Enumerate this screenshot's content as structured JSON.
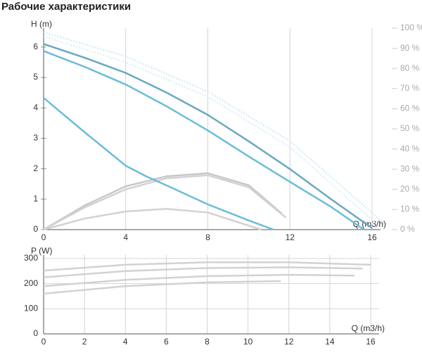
{
  "title": "Рабочие характеристики",
  "chart_data": [
    {
      "type": "line",
      "ylabel": "H (m)",
      "xlabel": "Q (m3/h)",
      "grid": "x",
      "xlim": [
        0,
        16
      ],
      "xticks": [
        0,
        4,
        8,
        12,
        16
      ],
      "ylim": [
        0,
        6.62
      ],
      "yticks": [
        0,
        1,
        2,
        3,
        4,
        5,
        6
      ],
      "y2lim": [
        0,
        100
      ],
      "y2ticks": [
        {
          "value": 0,
          "label": "0 %"
        },
        {
          "value": 10,
          "label": "10 %"
        },
        {
          "value": 20,
          "label": "20 %"
        },
        {
          "value": 30,
          "label": "30 %"
        },
        {
          "value": 40,
          "label": "40 %"
        },
        {
          "value": 50,
          "label": "50 %"
        },
        {
          "value": 60,
          "label": "60 %"
        },
        {
          "value": 70,
          "label": "70 %"
        },
        {
          "value": 80,
          "label": "80 %"
        },
        {
          "value": 90,
          "label": "90 %"
        },
        {
          "value": 100,
          "label": "100 %"
        }
      ],
      "series": [
        {
          "color": "#cfe9f3",
          "dash": "dotted",
          "axis": "y2",
          "x": [
            0,
            4,
            8,
            12,
            16.6
          ],
          "values": [
            98,
            86,
            68.5,
            44,
            3
          ]
        },
        {
          "color": "#d9eef6",
          "dash": "dotted",
          "axis": "y2",
          "x": [
            0,
            4,
            8,
            12,
            16.2
          ],
          "values": [
            96,
            83,
            66,
            41,
            3
          ]
        },
        {
          "color": "#c8c8c8",
          "axis": "y2",
          "x": [
            0,
            2,
            4,
            6,
            8,
            10,
            11.6
          ],
          "values": [
            0,
            12,
            21.5,
            26.5,
            28,
            22,
            8
          ]
        },
        {
          "color": "#d2d2d2",
          "axis": "y2",
          "x": [
            0,
            2,
            4,
            6,
            8,
            10,
            11.8
          ],
          "values": [
            0,
            11,
            20,
            25.5,
            27,
            21,
            6
          ]
        },
        {
          "color": "#d2d2d2",
          "axis": "y2",
          "x": [
            0,
            2,
            4,
            6,
            8,
            10.6
          ],
          "values": [
            0,
            5.5,
            9,
            10.3,
            8.5,
            0
          ]
        },
        {
          "color": "#6aa8bf",
          "x": [
            0,
            2,
            4,
            6,
            8,
            10,
            12,
            14,
            16
          ],
          "values": [
            6.1,
            5.65,
            5.15,
            4.5,
            3.77,
            2.9,
            1.99,
            1.0,
            0.05
          ]
        },
        {
          "color": "#6bbdd8",
          "x": [
            0,
            2,
            4,
            6,
            8,
            10,
            12,
            14,
            15.6
          ],
          "values": [
            5.87,
            5.35,
            4.77,
            4.05,
            3.26,
            2.4,
            1.57,
            0.75,
            0
          ]
        },
        {
          "color": "#6bbdd8",
          "x": [
            0,
            2,
            4,
            5,
            6,
            8,
            10,
            11.2
          ],
          "values": [
            4.33,
            3.2,
            2.1,
            1.75,
            1.45,
            0.83,
            0.3,
            0
          ]
        }
      ]
    },
    {
      "type": "line",
      "ylabel": "P (W)",
      "xlabel": "Q (m3/h)",
      "grid": "both",
      "xlim": [
        0,
        16
      ],
      "xticks": [
        0,
        2,
        4,
        6,
        8,
        10,
        12,
        14,
        16
      ],
      "ylim": [
        0,
        314
      ],
      "yticks": [
        0,
        100,
        200,
        300
      ],
      "series": [
        {
          "color": "#d2d2d2",
          "x": [
            0,
            4,
            8,
            12,
            16
          ],
          "values": [
            252,
            275,
            285,
            285,
            275
          ]
        },
        {
          "color": "#d2d2d2",
          "x": [
            0,
            4,
            8,
            12,
            15.6
          ],
          "values": [
            225,
            250,
            262,
            265,
            260
          ]
        },
        {
          "color": "#d2d2d2",
          "x": [
            0,
            4,
            8,
            12,
            15.2
          ],
          "values": [
            190,
            215,
            230,
            235,
            232
          ]
        },
        {
          "color": "#d2d2d2",
          "x": [
            0,
            4,
            8,
            11.6
          ],
          "values": [
            160,
            190,
            205,
            210
          ]
        }
      ]
    }
  ]
}
